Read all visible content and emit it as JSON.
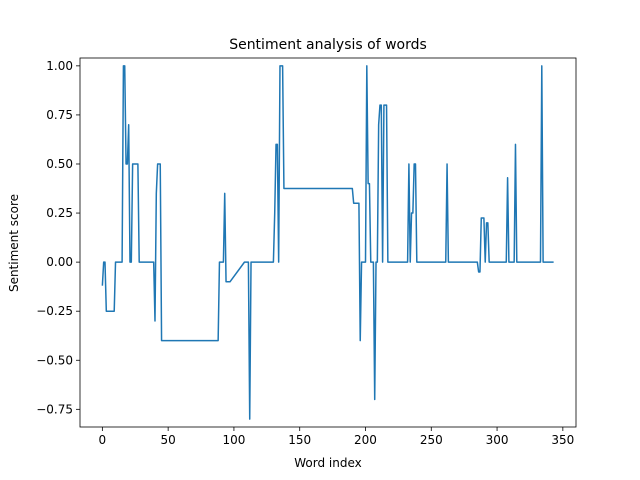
{
  "chart_data": {
    "type": "line",
    "title": "Sentiment analysis of words",
    "xlabel": "Word index",
    "ylabel": "Sentiment score",
    "xlim": [
      -17,
      360
    ],
    "ylim": [
      -0.84,
      1.04
    ],
    "xticks": [
      0,
      50,
      100,
      150,
      200,
      250,
      300,
      350
    ],
    "yticks": [
      -0.75,
      -0.5,
      -0.25,
      0.0,
      0.25,
      0.5,
      0.75,
      1.0
    ],
    "xtick_labels": [
      "0",
      "50",
      "100",
      "150",
      "200",
      "250",
      "300",
      "350"
    ],
    "ytick_labels": [
      "−0.75",
      "−0.50",
      "−0.25",
      "0.00",
      "0.25",
      "0.50",
      "0.75",
      "1.00"
    ],
    "grid": false,
    "series": [
      {
        "color": "#1f77b4",
        "x": [
          0,
          1,
          2,
          3,
          4,
          5,
          6,
          7,
          8,
          9,
          10,
          11,
          12,
          13,
          14,
          15,
          16,
          17,
          18,
          19,
          20,
          21,
          22,
          23,
          24,
          25,
          26,
          27,
          28,
          29,
          30,
          31,
          32,
          33,
          34,
          35,
          36,
          37,
          38,
          39,
          40,
          41,
          42,
          43,
          44,
          45,
          46,
          47,
          88,
          89,
          90,
          91,
          92,
          93,
          94,
          95,
          96,
          97,
          108,
          109,
          110,
          111,
          112,
          113,
          114,
          115,
          130,
          131,
          132,
          133,
          134,
          135,
          136,
          137,
          138,
          188,
          189,
          190,
          191,
          194,
          195,
          196,
          197,
          198,
          199,
          200,
          201,
          202,
          203,
          204,
          205,
          206,
          207,
          208,
          209,
          210,
          211,
          212,
          213,
          214,
          215,
          216,
          217,
          218,
          219,
          220,
          230,
          231,
          232,
          233,
          234,
          235,
          236,
          237,
          238,
          239,
          240,
          241,
          260,
          261,
          262,
          263,
          264,
          265,
          284,
          285,
          286,
          287,
          288,
          289,
          290,
          291,
          292,
          293,
          294,
          295,
          305,
          306,
          307,
          308,
          309,
          310,
          311,
          312,
          313,
          314,
          315,
          316,
          332,
          333,
          334,
          335,
          336,
          343
        ],
        "y": [
          -0.12,
          0.0,
          0.0,
          -0.25,
          -0.25,
          -0.25,
          -0.25,
          -0.25,
          -0.25,
          -0.25,
          0.0,
          0.0,
          0.0,
          0.0,
          0.0,
          0.0,
          1.0,
          1.0,
          0.5,
          0.5,
          0.7,
          0.0,
          0.0,
          0.5,
          0.5,
          0.5,
          0.5,
          0.5,
          0.0,
          0.0,
          0.0,
          0.0,
          0.0,
          0.0,
          0.0,
          0.0,
          0.0,
          0.0,
          0.0,
          0.0,
          -0.3,
          0.35,
          0.5,
          0.5,
          0.5,
          -0.4,
          -0.4,
          -0.4,
          -0.4,
          0.0,
          0.0,
          0.0,
          0.0,
          0.35,
          -0.1,
          -0.1,
          -0.1,
          -0.1,
          0.0,
          0.0,
          0.0,
          0.0,
          -0.8,
          0.0,
          0.0,
          0.0,
          0.0,
          0.25,
          0.6,
          0.6,
          0.0,
          1.0,
          1.0,
          1.0,
          0.375,
          0.375,
          0.375,
          0.375,
          0.3,
          0.3,
          0.3,
          -0.4,
          0.0,
          0.0,
          0.0,
          0.0,
          1.0,
          0.4,
          0.4,
          0.0,
          0.0,
          0.0,
          -0.7,
          0.0,
          0.0,
          0.7,
          0.8,
          0.8,
          0.0,
          0.8,
          0.8,
          0.8,
          0.0,
          0.0,
          0.0,
          0.0,
          0.0,
          0.0,
          0.0,
          0.5,
          0.0,
          0.25,
          0.25,
          0.5,
          0.5,
          0.0,
          0.0,
          0.0,
          0.0,
          0.0,
          0.5,
          0.0,
          0.0,
          0.0,
          0.0,
          0.0,
          -0.05,
          -0.05,
          0.225,
          0.225,
          0.225,
          0.0,
          0.2,
          0.2,
          0.0,
          0.0,
          0.0,
          0.0,
          0.0,
          0.43,
          0.0,
          0.0,
          0.0,
          0.0,
          0.0,
          0.6,
          0.0,
          0.0,
          0.0,
          0.0,
          1.0,
          0.0,
          0.0,
          0.0
        ]
      }
    ]
  }
}
